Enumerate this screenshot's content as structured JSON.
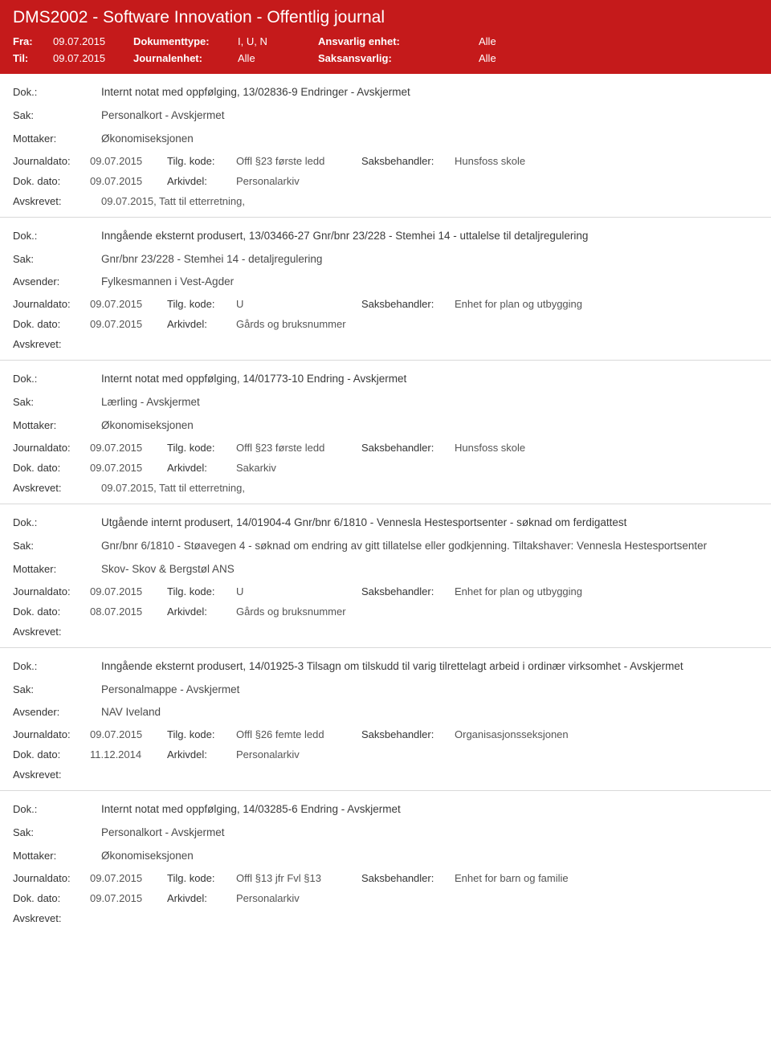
{
  "header": {
    "title": "DMS2002 - Software Innovation - Offentlig journal",
    "fra_label": "Fra:",
    "fra_value": "09.07.2015",
    "til_label": "Til:",
    "til_value": "09.07.2015",
    "doktype_label": "Dokumenttype:",
    "doktype_value": "I, U, N",
    "journalenhet_label": "Journalenhet:",
    "journalenhet_value": "Alle",
    "ansvarlig_label": "Ansvarlig enhet:",
    "ansvarlig_value": "Alle",
    "saksansvarlig_label": "Saksansvarlig:",
    "saksansvarlig_value": "Alle"
  },
  "labels": {
    "dok": "Dok.:",
    "sak": "Sak:",
    "mottaker": "Mottaker:",
    "avsender": "Avsender:",
    "journaldato": "Journaldato:",
    "dokdato": "Dok. dato:",
    "tilgkode": "Tilg. kode:",
    "arkivdel": "Arkivdel:",
    "saksbehandler": "Saksbehandler:",
    "avskrevet": "Avskrevet:"
  },
  "entries": [
    {
      "dok": "Internt notat med oppfølging, 13/02836-9 Endringer - Avskjermet",
      "sak": "Personalkort - Avskjermet",
      "party_label": "Mottaker:",
      "party_value": "Økonomiseksjonen",
      "journaldato": "09.07.2015",
      "tilgkode": "Offl §23 første ledd",
      "saksbehandler": "Hunsfoss skole",
      "dokdato": "09.07.2015",
      "arkivdel": "Personalarkiv",
      "avskrevet": "09.07.2015, Tatt til etterretning,"
    },
    {
      "dok": "Inngående eksternt produsert, 13/03466-27 Gnr/bnr 23/228 - Stemhei 14 - uttalelse til detaljregulering",
      "sak": "Gnr/bnr 23/228 - Stemhei 14 - detaljregulering",
      "party_label": "Avsender:",
      "party_value": "Fylkesmannen i Vest-Agder",
      "journaldato": "09.07.2015",
      "tilgkode": "U",
      "saksbehandler": "Enhet for plan og utbygging",
      "dokdato": "09.07.2015",
      "arkivdel": "Gårds og bruksnummer",
      "avskrevet": ""
    },
    {
      "dok": "Internt notat med oppfølging, 14/01773-10 Endring - Avskjermet",
      "sak": "Lærling - Avskjermet",
      "party_label": "Mottaker:",
      "party_value": "Økonomiseksjonen",
      "journaldato": "09.07.2015",
      "tilgkode": "Offl §23 første ledd",
      "saksbehandler": "Hunsfoss skole",
      "dokdato": "09.07.2015",
      "arkivdel": "Sakarkiv",
      "avskrevet": "09.07.2015, Tatt til etterretning,"
    },
    {
      "dok": "Utgående internt produsert, 14/01904-4 Gnr/bnr 6/1810 - Vennesla Hestesportsenter - søknad om ferdigattest",
      "sak": "Gnr/bnr 6/1810 - Støavegen 4 - søknad om endring av gitt tillatelse eller godkjenning. Tiltakshaver: Vennesla Hestesportsenter",
      "party_label": "Mottaker:",
      "party_value": "Skov- Skov & Bergstøl ANS",
      "journaldato": "09.07.2015",
      "tilgkode": "U",
      "saksbehandler": "Enhet for plan og utbygging",
      "dokdato": "08.07.2015",
      "arkivdel": "Gårds og bruksnummer",
      "avskrevet": ""
    },
    {
      "dok": "Inngående eksternt produsert, 14/01925-3 Tilsagn om tilskudd til varig tilrettelagt arbeid i ordinær virksomhet - Avskjermet",
      "sak": "Personalmappe - Avskjermet",
      "party_label": "Avsender:",
      "party_value": "NAV Iveland",
      "journaldato": "09.07.2015",
      "tilgkode": "Offl §26 femte ledd",
      "saksbehandler": "Organisasjonsseksjonen",
      "dokdato": "11.12.2014",
      "arkivdel": "Personalarkiv",
      "avskrevet": ""
    },
    {
      "dok": "Internt notat med oppfølging, 14/03285-6 Endring - Avskjermet",
      "sak": "Personalkort - Avskjermet",
      "party_label": "Mottaker:",
      "party_value": "Økonomiseksjonen",
      "journaldato": "09.07.2015",
      "tilgkode": "Offl §13 jfr Fvl §13",
      "saksbehandler": "Enhet for barn og familie",
      "dokdato": "09.07.2015",
      "arkivdel": "Personalarkiv",
      "avskrevet": ""
    }
  ]
}
